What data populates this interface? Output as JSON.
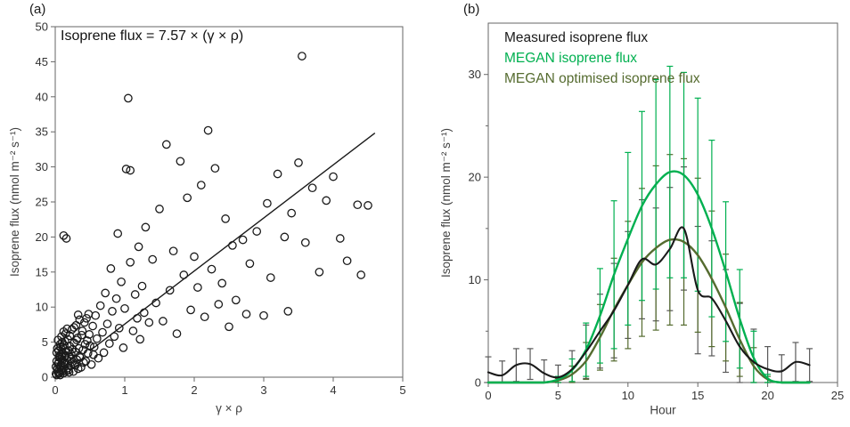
{
  "page": {
    "background": "#ffffff"
  },
  "panel_a": {
    "label": "(a)",
    "annotation": "Isoprene flux = 7.57 × (γ × ρ)",
    "x_axis_label": "γ × ρ",
    "y_axis_label": "Isoprene flux (nmol m⁻² s⁻¹)"
  },
  "panel_b": {
    "label": "(b)",
    "x_axis_label": "Hour",
    "y_axis_label": "Isoprene flux (nmol m⁻² s⁻¹)",
    "legend": [
      {
        "label": "Measured isoprene flux",
        "color": "#1a1a1a"
      },
      {
        "label": "MEGAN isoprene flux",
        "color": "#00b050"
      },
      {
        "label": "MEGAN optimised isoprene flux",
        "color": "#556b2f"
      }
    ]
  },
  "chart_data": [
    {
      "type": "scatter",
      "title": "",
      "xlabel": "γ × ρ",
      "ylabel": "Isoprene flux (nmol m⁻² s⁻¹)",
      "xlim": [
        0,
        5
      ],
      "ylim": [
        0,
        50
      ],
      "xticks": [
        0,
        1,
        2,
        3,
        4,
        5
      ],
      "yticks": [
        0,
        5,
        10,
        15,
        20,
        25,
        30,
        35,
        40,
        45,
        50
      ],
      "grid": false,
      "marker": {
        "shape": "open-circle",
        "color": "#1a1a1a"
      },
      "fit_line": {
        "label": "Isoprene flux = 7.57 × (γ × ρ)",
        "slope": 7.57,
        "intercept": 0,
        "x_range": [
          0.5,
          4.6
        ],
        "color": "#1a1a1a"
      },
      "points": [
        [
          0.01,
          0.5
        ],
        [
          0.01,
          1.5
        ],
        [
          0.02,
          0.3
        ],
        [
          0.02,
          2.3
        ],
        [
          0.02,
          3.5
        ],
        [
          0.03,
          1.2
        ],
        [
          0.03,
          4.1
        ],
        [
          0.04,
          0.8
        ],
        [
          0.04,
          1.9
        ],
        [
          0.04,
          5.3
        ],
        [
          0.05,
          2.1
        ],
        [
          0.05,
          0.5
        ],
        [
          0.05,
          3.8
        ],
        [
          0.06,
          3.0
        ],
        [
          0.06,
          0.6
        ],
        [
          0.06,
          2.8
        ],
        [
          0.07,
          1.5
        ],
        [
          0.07,
          4.7
        ],
        [
          0.07,
          0.3
        ],
        [
          0.08,
          0.9
        ],
        [
          0.08,
          4.2
        ],
        [
          0.08,
          1.7
        ],
        [
          0.09,
          2.6
        ],
        [
          0.09,
          3.2
        ],
        [
          0.09,
          5.8
        ],
        [
          0.1,
          1.1
        ],
        [
          0.1,
          5.0
        ],
        [
          0.1,
          2.4
        ],
        [
          0.11,
          3.4
        ],
        [
          0.11,
          0.9
        ],
        [
          0.11,
          4.3
        ],
        [
          0.12,
          0.6
        ],
        [
          0.12,
          2.0
        ],
        [
          0.12,
          6.5
        ],
        [
          0.12,
          20.2
        ],
        [
          0.13,
          4.6
        ],
        [
          0.13,
          1.4
        ],
        [
          0.14,
          1.8
        ],
        [
          0.14,
          2.9
        ],
        [
          0.14,
          5.1
        ],
        [
          0.15,
          3.1
        ],
        [
          0.15,
          6.2
        ],
        [
          0.16,
          0.9
        ],
        [
          0.16,
          3.7
        ],
        [
          0.16,
          19.8
        ],
        [
          0.17,
          2.4
        ],
        [
          0.17,
          6.9
        ],
        [
          0.18,
          5.4
        ],
        [
          0.18,
          1.3
        ],
        [
          0.19,
          3.8
        ],
        [
          0.19,
          1.0
        ],
        [
          0.2,
          0.7
        ],
        [
          0.2,
          2.9
        ],
        [
          0.21,
          4.4
        ],
        [
          0.21,
          5.9
        ],
        [
          0.22,
          1.6
        ],
        [
          0.23,
          3.3
        ],
        [
          0.23,
          2.6
        ],
        [
          0.24,
          6.8
        ],
        [
          0.25,
          2.2
        ],
        [
          0.25,
          4.0
        ],
        [
          0.26,
          0.8
        ],
        [
          0.27,
          4.9
        ],
        [
          0.27,
          7.1
        ],
        [
          0.28,
          1.9
        ],
        [
          0.29,
          3.6
        ],
        [
          0.29,
          1.7
        ],
        [
          0.3,
          7.4
        ],
        [
          0.31,
          2.5
        ],
        [
          0.31,
          5.3
        ],
        [
          0.32,
          5.6
        ],
        [
          0.33,
          1.2
        ],
        [
          0.33,
          8.9
        ],
        [
          0.34,
          4.1
        ],
        [
          0.35,
          8.2
        ],
        [
          0.35,
          3.0
        ],
        [
          0.36,
          2.8
        ],
        [
          0.37,
          1.4
        ],
        [
          0.38,
          6.0
        ],
        [
          0.39,
          6.6
        ],
        [
          0.4,
          3.9
        ],
        [
          0.41,
          2.1
        ],
        [
          0.42,
          7.8
        ],
        [
          0.43,
          4.7
        ],
        [
          0.44,
          2.3
        ],
        [
          0.45,
          8.4
        ],
        [
          0.46,
          5.2
        ],
        [
          0.47,
          3.4
        ],
        [
          0.48,
          9.0
        ],
        [
          0.49,
          6.1
        ],
        [
          0.5,
          4.5
        ],
        [
          0.52,
          1.8
        ],
        [
          0.54,
          7.3
        ],
        [
          0.55,
          3.2
        ],
        [
          0.56,
          4.3
        ],
        [
          0.58,
          8.8
        ],
        [
          0.6,
          5.5
        ],
        [
          0.62,
          2.7
        ],
        [
          0.65,
          10.2
        ],
        [
          0.68,
          6.4
        ],
        [
          0.7,
          3.5
        ],
        [
          0.72,
          12.0
        ],
        [
          0.75,
          7.6
        ],
        [
          0.78,
          4.8
        ],
        [
          0.8,
          15.5
        ],
        [
          0.82,
          9.4
        ],
        [
          0.85,
          5.8
        ],
        [
          0.88,
          11.2
        ],
        [
          0.9,
          20.5
        ],
        [
          0.92,
          7.0
        ],
        [
          0.95,
          13.6
        ],
        [
          0.98,
          4.2
        ],
        [
          1.0,
          9.8
        ],
        [
          1.02,
          29.7
        ],
        [
          1.05,
          39.8
        ],
        [
          1.08,
          29.5
        ],
        [
          1.08,
          16.4
        ],
        [
          1.12,
          6.6
        ],
        [
          1.15,
          11.8
        ],
        [
          1.18,
          8.4
        ],
        [
          1.2,
          18.6
        ],
        [
          1.22,
          5.4
        ],
        [
          1.25,
          13.0
        ],
        [
          1.28,
          9.2
        ],
        [
          1.3,
          21.4
        ],
        [
          1.35,
          7.8
        ],
        [
          1.4,
          16.8
        ],
        [
          1.45,
          10.6
        ],
        [
          1.5,
          24.0
        ],
        [
          1.55,
          8.0
        ],
        [
          1.6,
          33.2
        ],
        [
          1.65,
          12.4
        ],
        [
          1.7,
          18.0
        ],
        [
          1.75,
          6.2
        ],
        [
          1.8,
          30.8
        ],
        [
          1.85,
          14.6
        ],
        [
          1.9,
          25.6
        ],
        [
          1.95,
          9.6
        ],
        [
          2.0,
          17.2
        ],
        [
          2.05,
          12.8
        ],
        [
          2.1,
          27.4
        ],
        [
          2.15,
          8.6
        ],
        [
          2.2,
          35.2
        ],
        [
          2.25,
          15.4
        ],
        [
          2.3,
          29.8
        ],
        [
          2.35,
          10.4
        ],
        [
          2.4,
          13.4
        ],
        [
          2.45,
          22.6
        ],
        [
          2.5,
          7.2
        ],
        [
          2.55,
          18.8
        ],
        [
          2.6,
          11.0
        ],
        [
          2.7,
          19.6
        ],
        [
          2.75,
          9.0
        ],
        [
          2.8,
          16.2
        ],
        [
          2.9,
          20.8
        ],
        [
          3.0,
          8.8
        ],
        [
          3.05,
          24.8
        ],
        [
          3.1,
          14.2
        ],
        [
          3.2,
          29.0
        ],
        [
          3.3,
          20.0
        ],
        [
          3.35,
          9.4
        ],
        [
          3.4,
          23.4
        ],
        [
          3.5,
          30.6
        ],
        [
          3.55,
          45.8
        ],
        [
          3.6,
          19.2
        ],
        [
          3.7,
          27.0
        ],
        [
          3.8,
          15.0
        ],
        [
          3.9,
          25.2
        ],
        [
          4.0,
          28.6
        ],
        [
          4.1,
          19.8
        ],
        [
          4.2,
          16.6
        ],
        [
          4.35,
          24.6
        ],
        [
          4.4,
          14.6
        ],
        [
          4.5,
          24.5
        ]
      ]
    },
    {
      "type": "line",
      "title": "",
      "xlabel": "Hour",
      "ylabel": "Isoprene flux (nmol m⁻² s⁻¹)",
      "xlim": [
        0,
        25
      ],
      "ylim": [
        0,
        35
      ],
      "xticks": [
        0,
        5,
        10,
        15,
        20,
        25
      ],
      "yticks": [
        0,
        10,
        20,
        30
      ],
      "yticks_minor": [
        5,
        15,
        25
      ],
      "grid": false,
      "legend_position": "top-left-inside",
      "x": [
        0,
        1,
        2,
        3,
        4,
        5,
        6,
        7,
        8,
        9,
        10,
        11,
        12,
        13,
        14,
        15,
        16,
        17,
        18,
        19,
        20,
        21,
        22,
        23
      ],
      "series": [
        {
          "name": "Measured isoprene flux",
          "color": "#1a1a1a",
          "error_color": "#595959",
          "values": [
            1.0,
            0.7,
            1.7,
            1.8,
            0.9,
            0.5,
            1.3,
            3.0,
            5.0,
            7.0,
            9.5,
            12.0,
            11.5,
            13.0,
            15.0,
            9.0,
            8.2,
            6.0,
            3.5,
            2.0,
            1.3,
            1.1,
            2.0,
            1.7
          ],
          "errors": [
            1.5,
            1.4,
            1.6,
            1.5,
            1.3,
            1.2,
            1.8,
            2.6,
            3.6,
            4.6,
            5.2,
            5.8,
            5.5,
            6.0,
            6.0,
            6.2,
            5.6,
            5.0,
            4.2,
            3.2,
            2.2,
            1.6,
            1.9,
            1.6
          ]
        },
        {
          "name": "MEGAN isoprene flux",
          "color": "#00b050",
          "error_color": "#00b050",
          "values": [
            0,
            0,
            0,
            0,
            0,
            0.3,
            1.2,
            3.2,
            6.5,
            10.5,
            14.0,
            17.2,
            19.3,
            20.5,
            20.2,
            18.3,
            15.0,
            10.8,
            6.2,
            2.4,
            0.4,
            0,
            0,
            0
          ],
          "errors": [
            0,
            0,
            0,
            0,
            0,
            0.3,
            1.1,
            2.6,
            4.6,
            7.2,
            8.4,
            9.2,
            10.2,
            10.3,
            10.0,
            9.4,
            8.6,
            6.8,
            4.8,
            2.6,
            0.4,
            0,
            0,
            0
          ]
        },
        {
          "name": "MEGAN optimised isoprene flux",
          "color": "#556b2f",
          "error_color": "#556b2f",
          "values": [
            0,
            0,
            0,
            0,
            0,
            0.2,
            0.8,
            2.1,
            4.4,
            7.1,
            9.5,
            11.7,
            13.1,
            13.9,
            13.7,
            12.4,
            10.1,
            7.3,
            4.2,
            1.6,
            0.3,
            0,
            0,
            0
          ],
          "errors": [
            0,
            0,
            0,
            0,
            0,
            0.2,
            0.8,
            1.8,
            3.2,
            5.0,
            6.2,
            7.2,
            8.0,
            8.3,
            8.1,
            7.5,
            6.6,
            5.2,
            3.6,
            1.8,
            0.3,
            0,
            0,
            0
          ]
        }
      ]
    }
  ]
}
